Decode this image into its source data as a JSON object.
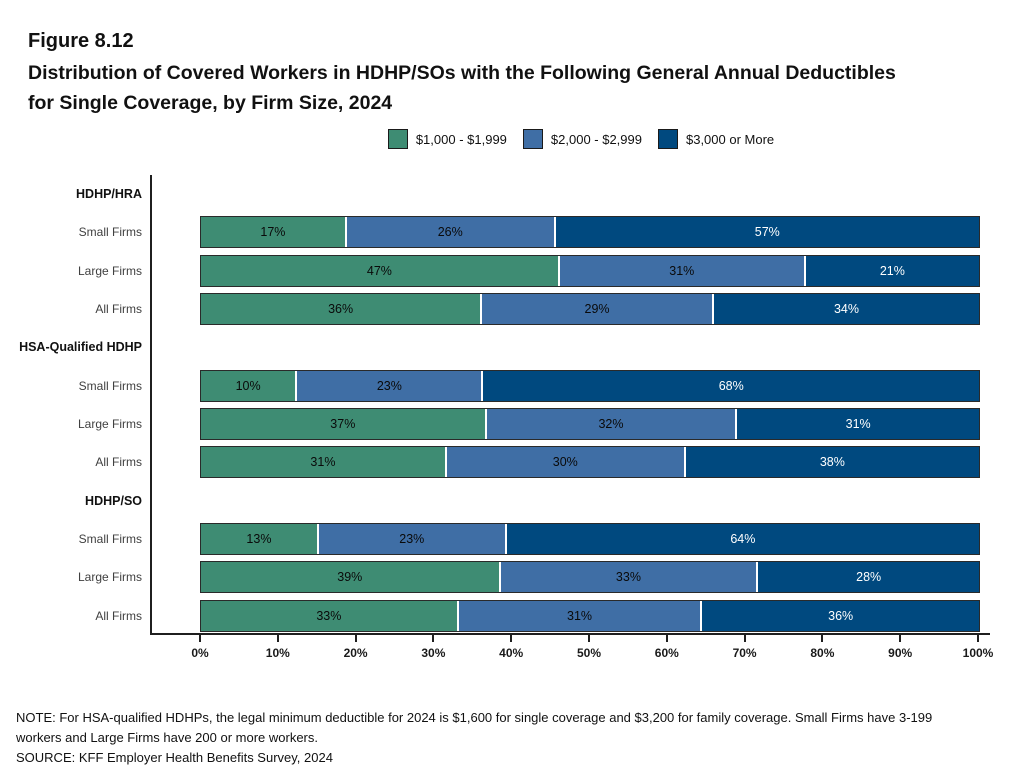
{
  "figure": {
    "label": "Figure 8.12",
    "title_line1": "Distribution of Covered Workers in HDHP/SOs with the Following General Annual Deductibles",
    "title_line2": "for Single Coverage, by Firm Size, 2024"
  },
  "legend": [
    {
      "label": "$1,000 - $1,999",
      "color": "#3E8C73"
    },
    {
      "label": "$2,000 - $2,999",
      "color": "#3F6EA5"
    },
    {
      "label": "$3,000 or More",
      "color": "#00497F"
    }
  ],
  "chart_data": {
    "type": "bar",
    "orientation": "horizontal",
    "stacked": true,
    "series_names": [
      "$1,000 - $1,999",
      "$2,000 - $2,999",
      "$3,000 or More"
    ],
    "colors": [
      "#3E8C73",
      "#3F6EA5",
      "#00497F"
    ],
    "label_colors": [
      "#0a0a0a",
      "#0a0a0a",
      "#ffffff"
    ],
    "value_suffix": "%",
    "xlim": [
      0,
      100
    ],
    "x_ticks": [
      "0%",
      "10%",
      "20%",
      "30%",
      "40%",
      "50%",
      "60%",
      "70%",
      "80%",
      "90%",
      "100%"
    ],
    "legend_position": "top",
    "grid": false,
    "groups": [
      {
        "group": "HDHP/HRA",
        "rows": [
          {
            "label": "Small Firms",
            "values": [
              17,
              26,
              57
            ]
          },
          {
            "label": "Large Firms",
            "values": [
              47,
              31,
              21
            ]
          },
          {
            "label": "All Firms",
            "values": [
              36,
              29,
              34
            ]
          }
        ]
      },
      {
        "group": "HSA-Qualified HDHP",
        "rows": [
          {
            "label": "Small Firms",
            "values": [
              10,
              23,
              68
            ]
          },
          {
            "label": "Large Firms",
            "values": [
              37,
              32,
              31
            ]
          },
          {
            "label": "All Firms",
            "values": [
              31,
              30,
              38
            ]
          }
        ]
      },
      {
        "group": "HDHP/SO",
        "rows": [
          {
            "label": "Small Firms",
            "values": [
              13,
              23,
              64
            ]
          },
          {
            "label": "Large Firms",
            "values": [
              39,
              33,
              28
            ]
          },
          {
            "label": "All Firms",
            "values": [
              33,
              31,
              36
            ]
          }
        ]
      }
    ]
  },
  "notes": {
    "note": "NOTE: For HSA-qualified HDHPs, the legal minimum deductible for 2024 is $1,600 for single coverage and $3,200 for family coverage. Small Firms have 3-199 workers and Large Firms have 200 or more workers.",
    "source": "SOURCE: KFF Employer Health Benefits Survey, 2024"
  }
}
